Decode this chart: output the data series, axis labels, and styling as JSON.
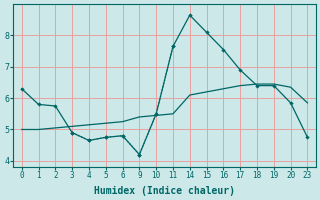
{
  "xlabel": "Humidex (Indice chaleur)",
  "background_color": "#cce8e8",
  "grid_color": "#e8a0a0",
  "line_color": "#006666",
  "ylim": [
    3.8,
    9.0
  ],
  "yticks": [
    4,
    5,
    6,
    7,
    8
  ],
  "xtick_labels": [
    "0",
    "1",
    "2",
    "3",
    "4",
    "5",
    "6",
    "9",
    "10",
    "11",
    "14",
    "15",
    "16",
    "17",
    "18",
    "19",
    "20",
    "23"
  ],
  "n_xticks": 18,
  "series1_y": [
    6.3,
    5.8,
    5.75,
    4.9,
    4.65,
    4.75,
    4.8,
    4.2,
    5.5,
    7.65,
    8.65,
    8.1,
    7.55,
    6.9,
    6.4,
    6.4,
    5.85,
    4.75
  ],
  "series2_y": [
    5.0,
    5.0,
    5.05,
    5.1,
    5.15,
    5.2,
    5.25,
    5.4,
    5.45,
    5.5,
    6.1,
    6.2,
    6.3,
    6.4,
    6.45,
    6.45,
    6.35,
    5.85
  ],
  "series3_x_idx": [
    3,
    4,
    5,
    6,
    7,
    8,
    9
  ],
  "series3_y": [
    4.9,
    4.65,
    4.75,
    4.8,
    4.2,
    5.5,
    7.65
  ]
}
